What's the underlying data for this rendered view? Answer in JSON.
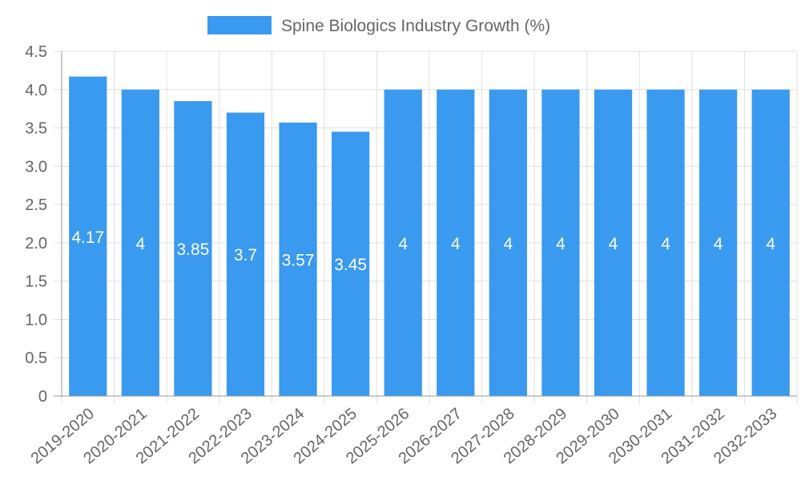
{
  "chart_data": {
    "type": "bar",
    "title": "",
    "xlabel": "",
    "ylabel": "",
    "legend": {
      "position": "top",
      "entries": [
        "Spine Biologics Industry Growth (%)"
      ]
    },
    "categories": [
      "2019-2020",
      "2020-2021",
      "2021-2022",
      "2022-2023",
      "2023-2024",
      "2024-2025",
      "2025-2026",
      "2026-2027",
      "2027-2028",
      "2028-2029",
      "2029-2030",
      "2030-2031",
      "2031-2032",
      "2032-2033"
    ],
    "series": [
      {
        "name": "Spine Biologics Industry Growth (%)",
        "values": [
          4.17,
          4,
          3.85,
          3.7,
          3.57,
          3.45,
          4,
          4,
          4,
          4,
          4,
          4,
          4,
          4
        ],
        "data_labels": [
          "4.17",
          "4",
          "3.85",
          "3.7",
          "3.57",
          "3.45",
          "4",
          "4",
          "4",
          "4",
          "4",
          "4",
          "4",
          "4"
        ],
        "color": "#3a9af0"
      }
    ],
    "ylim": [
      0,
      4.5
    ],
    "y_ticks": [
      0,
      0.5,
      1,
      1.5,
      2,
      2.5,
      3,
      3.5,
      4,
      4.5
    ],
    "y_tick_labels": [
      "0",
      "0.5",
      "1.0",
      "1.5",
      "2.0",
      "2.5",
      "3.0",
      "3.5",
      "4.0",
      "4.5"
    ],
    "grid": true,
    "colors": {
      "bar": "#3a9af0",
      "grid": "#e0e0e0",
      "axis": "#999999",
      "text": "#666666",
      "label": "#ffffff"
    }
  }
}
